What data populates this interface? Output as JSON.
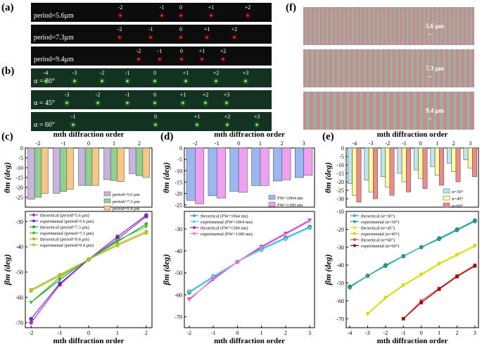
{
  "panels": {
    "a": "(a)",
    "b": "(b)",
    "c": "(c)",
    "d": "(d)",
    "e": "(e)",
    "f": "(f)"
  },
  "image_a": {
    "rows": [
      {
        "label": "period=5.6μm",
        "orders": [
          "-2",
          "-1",
          "0",
          "+1",
          "+2"
        ]
      },
      {
        "label": "period=7.3μm",
        "orders": [
          "-2",
          "-1",
          "0",
          "+1",
          "+2"
        ]
      },
      {
        "label": "period=9.4μm",
        "orders": [
          "-2",
          "-1",
          "0",
          "+1",
          "+2"
        ]
      }
    ]
  },
  "image_b": {
    "rows": [
      {
        "label": "α = 30°",
        "orders": [
          "-4",
          "-3",
          "-2",
          "-1",
          "0",
          "+1",
          "+2",
          "+3"
        ]
      },
      {
        "label": "α = 45°",
        "orders": [
          "-3",
          "-2",
          "-1",
          "0",
          "+1",
          "+2",
          "+3"
        ]
      },
      {
        "label": "α = 60°",
        "orders": [
          "-1",
          "0",
          "+1",
          "+2",
          "+3"
        ]
      }
    ]
  },
  "image_f": {
    "labels": [
      "5.6 μm",
      "7.3 μm",
      "9.4 μm"
    ]
  },
  "colors": {
    "c_bar": [
      "#c8b4e0",
      "#8fd18f",
      "#f9c784"
    ],
    "c_line": [
      "#b12ad1",
      "#6f2ad1",
      "#2e9e2e",
      "#3ac13a",
      "#c8a81e",
      "#a8c82a"
    ],
    "d_bar": [
      "#9bb7f2",
      "#f0a0f0"
    ],
    "d_line": [
      "#2aa8d1",
      "#57d7f5",
      "#a82ad1",
      "#f07ad6"
    ],
    "e_bar": [
      "#bfe6f2",
      "#ffffa0",
      "#f08a8a"
    ],
    "e_line": [
      "#26b2b2",
      "#16a0a0",
      "#e6e62a",
      "#d6d600",
      "#e64c4c",
      "#a00000"
    ]
  },
  "chart_data": [
    {
      "id": "c-top",
      "type": "bar",
      "title": "mth diffraction order",
      "xlabel": "mth diffraction order",
      "ylabel": "θm (deg)",
      "categories": [
        "-2",
        "-1",
        "0",
        "1",
        "2"
      ],
      "xlim": [
        -2.5,
        2.5
      ],
      "ylim": [
        -30,
        0
      ],
      "yticks": [
        "-25",
        "-20",
        "-15",
        "-10",
        "-5",
        "0"
      ],
      "series": [
        {
          "name": "period=5.6 μm",
          "values": [
            -26,
            -23,
            -19,
            -16,
            -13
          ]
        },
        {
          "name": "period=7.3 μm",
          "values": [
            -25,
            -22,
            -19,
            -16.5,
            -14
          ]
        },
        {
          "name": "period=9.4 μm",
          "values": [
            -23,
            -21,
            -19,
            -17,
            -15
          ]
        }
      ]
    },
    {
      "id": "c-bottom",
      "type": "line",
      "xlabel": "mth diffraction order",
      "ylabel": "βm (deg)",
      "xticks": [
        "-2",
        "-1",
        "0",
        "1",
        "2"
      ],
      "yticks": [
        "-70",
        "-60",
        "-50",
        "-40",
        "-30"
      ],
      "xlim": [
        -2.2,
        2.2
      ],
      "ylim": [
        -72,
        -26
      ],
      "series": [
        {
          "name": "theoretical (period=5.6 μm)",
          "x": [
            -2,
            -1,
            0,
            1,
            2
          ],
          "values": [
            -70,
            -55,
            -45,
            -37,
            -28
          ]
        },
        {
          "name": "experimental (period=5.6 μm)",
          "x": [
            -2,
            -1,
            0,
            1,
            2
          ],
          "values": [
            -68.5,
            -54.5,
            -45,
            -36,
            -27.5
          ]
        },
        {
          "name": "theoretical (period=7.3 μm)",
          "x": [
            -2,
            -1,
            0,
            1,
            2
          ],
          "values": [
            -62,
            -53,
            -45,
            -38,
            -31
          ]
        },
        {
          "name": "experimental (period=7.3 μm)",
          "x": [
            -2,
            -1,
            0,
            1,
            2
          ],
          "values": [
            -62,
            -52,
            -45,
            -37.5,
            -32
          ]
        },
        {
          "name": "theoretical (period=9.4 μm)",
          "x": [
            -2,
            -1,
            0,
            1,
            2
          ],
          "values": [
            -57,
            -51,
            -45,
            -39,
            -34
          ]
        },
        {
          "name": "experimental (period=9.4 μm)",
          "x": [
            -2,
            -1,
            0,
            1,
            2
          ],
          "values": [
            -57.5,
            -51.5,
            -45,
            -39.5,
            -34.5
          ]
        }
      ]
    },
    {
      "id": "d-top",
      "type": "bar",
      "title": "mth diffraction order",
      "xlabel": "mth diffraction order",
      "ylabel": "θm (deg)",
      "categories": [
        "-2",
        "-1",
        "0",
        "1",
        "2",
        "3"
      ],
      "xlim": [
        -2.5,
        3.5
      ],
      "ylim": [
        -26,
        0
      ],
      "yticks": [
        "-25",
        "-20",
        "-15",
        "-10",
        "-5",
        "0"
      ],
      "series": [
        {
          "name": "FW=1064 nm",
          "values": [
            -23,
            -21,
            -19,
            -16.5,
            -14.5,
            -13
          ]
        },
        {
          "name": "FW=1300 nm",
          "values": [
            -24.5,
            -22,
            -19.5,
            -16.5,
            -14,
            -12
          ]
        }
      ]
    },
    {
      "id": "d-bottom",
      "type": "line",
      "xlabel": "mth diffraction order",
      "ylabel": "βm (deg)",
      "xticks": [
        "-2",
        "-1",
        "0",
        "1",
        "2",
        "3"
      ],
      "yticks": [
        "-70",
        "-60",
        "-50",
        "-40",
        "-30"
      ],
      "xlim": [
        -2.2,
        3.2
      ],
      "ylim": [
        -75,
        -22
      ],
      "series": [
        {
          "name": "theoretical (FW=1064 nm)",
          "x": [
            -2,
            -1,
            0,
            1,
            2,
            3
          ],
          "values": [
            -59,
            -52,
            -45,
            -39,
            -34,
            -29
          ]
        },
        {
          "name": "experimental (FW=1064 nm)",
          "x": [
            -2,
            -1,
            0,
            1,
            2,
            3
          ],
          "values": [
            -58.5,
            -51.5,
            -45,
            -39.5,
            -34.5,
            -29.5
          ]
        },
        {
          "name": "theoretical (FW=1300 nm)",
          "x": [
            -2,
            -1,
            0,
            1,
            2,
            3
          ],
          "values": [
            -62,
            -53,
            -45,
            -38,
            -32,
            -26
          ]
        },
        {
          "name": "experimental (FW=1300 nm)",
          "x": [
            -2,
            -1,
            0,
            1,
            2,
            3
          ],
          "values": [
            -62.5,
            -52.5,
            -45,
            -38.5,
            -32.5,
            -26.5
          ]
        }
      ]
    },
    {
      "id": "e-top",
      "type": "bar",
      "title": "mth diffraction order",
      "xlabel": "mth diffraction order",
      "ylabel": "θm (deg)",
      "categories": [
        "-4",
        "-3",
        "-2",
        "-1",
        "0",
        "1",
        "2",
        "3"
      ],
      "xlim": [
        -4.5,
        3.5
      ],
      "ylim": [
        -35,
        0
      ],
      "yticks": [
        "-30",
        "-25",
        "-20",
        "-15",
        "-10",
        "-5",
        "0"
      ],
      "series": [
        {
          "name": "α=30°",
          "values": [
            -21,
            -19,
            -17,
            -15,
            -13,
            -11,
            -9,
            -7
          ]
        },
        {
          "name": "α=45°",
          "values": [
            -28,
            -26,
            -23,
            -20,
            -18,
            -16,
            -14,
            -12
          ]
        },
        {
          "name": "α=60°",
          "values": [
            -32,
            -30,
            -28,
            -26,
            -24,
            -22,
            -20,
            -17
          ]
        }
      ]
    },
    {
      "id": "e-bottom",
      "type": "line",
      "xlabel": "mth diffraction order",
      "ylabel": "βm (deg)",
      "xticks": [
        "-4",
        "-3",
        "-2",
        "-1",
        "0",
        "1",
        "2",
        "3"
      ],
      "yticks": [
        "-70",
        "-60",
        "-50",
        "-40",
        "-30",
        "-20",
        "-10"
      ],
      "xlim": [
        -4.2,
        3.2
      ],
      "ylim": [
        -75,
        -10
      ],
      "series": [
        {
          "name": "theoretical (α=30°)",
          "x": [
            -4,
            -3,
            -2,
            -1,
            0,
            1,
            2,
            3
          ],
          "values": [
            -52,
            -46,
            -40,
            -35,
            -30,
            -25,
            -20,
            -15
          ]
        },
        {
          "name": "experimental (α=30°)",
          "x": [
            -4,
            -3,
            -2,
            -1,
            0,
            1,
            2,
            3
          ],
          "values": [
            -52.5,
            -46,
            -40.5,
            -35,
            -30,
            -25.5,
            -20.5,
            -15.5
          ]
        },
        {
          "name": "theoretical (α=45°)",
          "x": [
            -3,
            -2,
            -1,
            0,
            1,
            2,
            3
          ],
          "values": [
            -67,
            -58,
            -51,
            -45,
            -39,
            -34,
            -29
          ]
        },
        {
          "name": "experimental (α=45°)",
          "x": [
            -3,
            -2,
            -1,
            0,
            1,
            2,
            3
          ],
          "values": [
            -67.5,
            -58.5,
            -51.5,
            -45.5,
            -39.5,
            -34.5,
            -29.5
          ]
        },
        {
          "name": "theoretical (α=60°)",
          "x": [
            -1,
            0,
            1,
            2,
            3
          ],
          "values": [
            -70,
            -60,
            -53,
            -46,
            -40
          ]
        },
        {
          "name": "experimental (α=60°)",
          "x": [
            -1,
            0,
            1,
            2,
            3
          ],
          "values": [
            -70,
            -61,
            -53.5,
            -46.5,
            -40.5
          ]
        }
      ]
    }
  ]
}
